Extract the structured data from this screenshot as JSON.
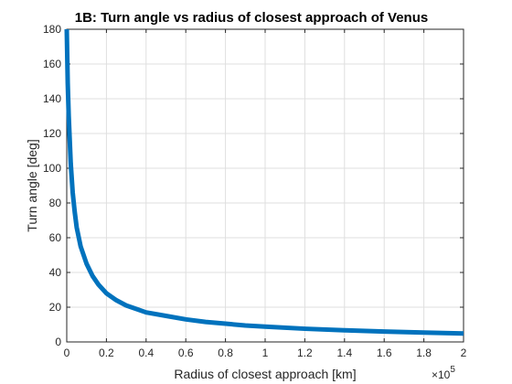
{
  "chart_data": {
    "type": "line",
    "title": "1B: Turn angle vs radius of closest approach of Venus",
    "xlabel": "Radius of closest approach [km]",
    "ylabel": "Turn angle [deg]",
    "x_exponent_label": "×10",
    "x_exponent_power": "5",
    "xlim": [
      0,
      2
    ],
    "ylim": [
      0,
      180
    ],
    "x_ticks": [
      0,
      0.2,
      0.4,
      0.6,
      0.8,
      1,
      1.2,
      1.4,
      1.6,
      1.8,
      2
    ],
    "x_tick_labels": [
      "0",
      "0.2",
      "0.4",
      "0.6",
      "0.8",
      "1",
      "1.2",
      "1.4",
      "1.6",
      "1.8",
      "2"
    ],
    "y_ticks": [
      0,
      20,
      40,
      60,
      80,
      100,
      120,
      140,
      160,
      180
    ],
    "y_tick_labels": [
      "0",
      "20",
      "40",
      "60",
      "80",
      "100",
      "120",
      "140",
      "160",
      "180"
    ],
    "grid": true,
    "line_color": "#0072bd",
    "series": [
      {
        "x": [
          0,
          0.005,
          0.01,
          0.02,
          0.03,
          0.04,
          0.05,
          0.07,
          0.1,
          0.13,
          0.16,
          0.2,
          0.25,
          0.3,
          0.35,
          0.4,
          0.5,
          0.6,
          0.7,
          0.8,
          0.9,
          1.0,
          1.2,
          1.4,
          1.6,
          1.8,
          2.0
        ],
        "y": [
          180,
          149,
          130,
          103,
          86,
          75,
          66,
          55,
          45,
          38,
          33,
          28,
          24,
          21,
          19,
          17,
          15,
          13,
          11.5,
          10.5,
          9.5,
          8.8,
          7.6,
          6.7,
          6.0,
          5.4,
          4.9
        ]
      }
    ]
  }
}
